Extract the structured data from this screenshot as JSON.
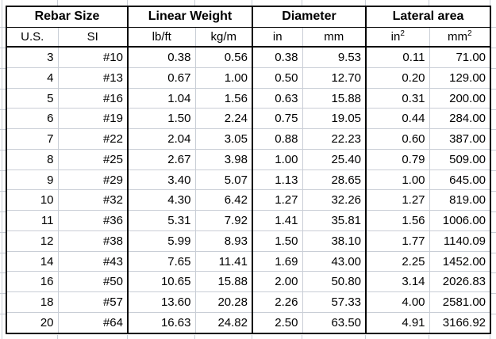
{
  "chart_data": {
    "type": "table",
    "column_groups": [
      {
        "label": "Rebar Size",
        "span": 2
      },
      {
        "label": "Linear Weight",
        "span": 2
      },
      {
        "label": "Diameter",
        "span": 2
      },
      {
        "label": "Lateral area",
        "span": 2
      }
    ],
    "columns": [
      {
        "label": "U.S."
      },
      {
        "label": "SI"
      },
      {
        "label": "lb/ft"
      },
      {
        "label": "kg/m"
      },
      {
        "label": "in"
      },
      {
        "label": "mm"
      },
      {
        "label": "in",
        "sup": "2"
      },
      {
        "label": "mm",
        "sup": "2"
      }
    ],
    "rows": [
      [
        "3",
        "#10",
        "0.38",
        "0.56",
        "0.38",
        "9.53",
        "0.11",
        "71.00"
      ],
      [
        "4",
        "#13",
        "0.67",
        "1.00",
        "0.50",
        "12.70",
        "0.20",
        "129.00"
      ],
      [
        "5",
        "#16",
        "1.04",
        "1.56",
        "0.63",
        "15.88",
        "0.31",
        "200.00"
      ],
      [
        "6",
        "#19",
        "1.50",
        "2.24",
        "0.75",
        "19.05",
        "0.44",
        "284.00"
      ],
      [
        "7",
        "#22",
        "2.04",
        "3.05",
        "0.88",
        "22.23",
        "0.60",
        "387.00"
      ],
      [
        "8",
        "#25",
        "2.67",
        "3.98",
        "1.00",
        "25.40",
        "0.79",
        "509.00"
      ],
      [
        "9",
        "#29",
        "3.40",
        "5.07",
        "1.13",
        "28.65",
        "1.00",
        "645.00"
      ],
      [
        "10",
        "#32",
        "4.30",
        "6.42",
        "1.27",
        "32.26",
        "1.27",
        "819.00"
      ],
      [
        "11",
        "#36",
        "5.31",
        "7.92",
        "1.41",
        "35.81",
        "1.56",
        "1006.00"
      ],
      [
        "12",
        "#38",
        "5.99",
        "8.93",
        "1.50",
        "38.10",
        "1.77",
        "1140.09"
      ],
      [
        "14",
        "#43",
        "7.65",
        "11.41",
        "1.69",
        "43.00",
        "2.25",
        "1452.00"
      ],
      [
        "16",
        "#50",
        "10.65",
        "15.88",
        "2.00",
        "50.80",
        "3.14",
        "2026.83"
      ],
      [
        "18",
        "#57",
        "13.60",
        "20.28",
        "2.26",
        "57.33",
        "4.00",
        "2581.00"
      ],
      [
        "20",
        "#64",
        "16.63",
        "24.82",
        "2.50",
        "63.50",
        "4.91",
        "3166.92"
      ]
    ]
  },
  "colors": {
    "border": "#000000",
    "gridline": "#c9ced6",
    "text": "#000000",
    "background": "#ffffff"
  }
}
